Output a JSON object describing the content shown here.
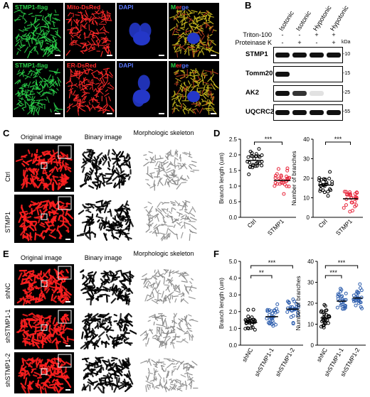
{
  "panels": {
    "A": "A",
    "B": "B",
    "C": "C",
    "D": "D",
    "E": "E",
    "F": "F"
  },
  "panelA": {
    "row1": [
      "STMP1-flag",
      "Mito-DsRed",
      "DAPI",
      "Merge"
    ],
    "row2": [
      "STMP1-flag",
      "ER-DsRed",
      "DAPI",
      "Merge"
    ]
  },
  "panelB": {
    "conditions": [
      "Isotonic",
      "Isotonic",
      "Hypotonic",
      "Hypotonic"
    ],
    "triton_label": "Triton-100",
    "triton_values": [
      "-",
      "-",
      "+",
      "+"
    ],
    "protk_label": "Proteinase K",
    "protk_values": [
      "-",
      "+",
      "-",
      "+"
    ],
    "kda_label": "kDa",
    "blots": [
      {
        "name": "STMP1",
        "kda": "10",
        "bands": [
          1,
          1,
          1,
          1
        ]
      },
      {
        "name": "Tomm20",
        "kda": "15",
        "bands": [
          1,
          0,
          0,
          0
        ]
      },
      {
        "name": "AK2",
        "kda": "25",
        "bands": [
          1,
          0.85,
          0.12,
          0
        ]
      },
      {
        "name": "UQCRC2",
        "kda": "55",
        "bands": [
          1,
          1,
          1,
          1
        ]
      }
    ]
  },
  "panelC": {
    "headers": [
      "Original image",
      "Binary image",
      "Morphologic skeleton"
    ],
    "rows": [
      "Ctrl",
      "STMP1"
    ]
  },
  "panelE": {
    "headers": [
      "Original image",
      "Binary image",
      "Morphologic skeleton"
    ],
    "rows": [
      "shNC",
      "shSTMP1-1",
      "shSTMP1-2"
    ]
  },
  "chart_data": [
    {
      "id": "D-left",
      "type": "scatter",
      "ylabel": "Branch length (um)",
      "categories": [
        "Ctrl",
        "STMP1"
      ],
      "ylim": [
        0,
        2.5
      ],
      "yticks": [
        "0.0",
        "0.5",
        "1.0",
        "1.5",
        "2.0",
        "2.5"
      ],
      "means": [
        1.82,
        1.18
      ],
      "sig": "***",
      "colors": [
        "#000000",
        "#e8263b"
      ]
    },
    {
      "id": "D-right",
      "type": "scatter",
      "ylabel": "Number of branches",
      "categories": [
        "Ctrl",
        "STMP1"
      ],
      "ylim": [
        0,
        40
      ],
      "yticks": [
        "0",
        "10",
        "20",
        "30",
        "40"
      ],
      "means": [
        16.5,
        9.5
      ],
      "sig": "***",
      "colors": [
        "#000000",
        "#e8263b"
      ]
    },
    {
      "id": "F-left",
      "type": "scatter",
      "ylabel": "Branch length (um)",
      "categories": [
        "shNC",
        "shSTMP1-1",
        "shSTMP1-2"
      ],
      "ylim": [
        0,
        5
      ],
      "yticks": [
        "0.0",
        "1.0",
        "2.0",
        "3.0",
        "4.0",
        "5.0"
      ],
      "means": [
        1.35,
        1.7,
        2.15
      ],
      "sig": [
        {
          "from": 0,
          "to": 1,
          "label": "**"
        },
        {
          "from": 0,
          "to": 2,
          "label": "***"
        }
      ],
      "colors": [
        "#000000",
        "#2f5fae",
        "#2f5fae"
      ]
    },
    {
      "id": "F-right",
      "type": "scatter",
      "ylabel": "Number of branches",
      "categories": [
        "shNC",
        "shSTMP1-1",
        "shSTMP1-2"
      ],
      "ylim": [
        0,
        40
      ],
      "yticks": [
        "0",
        "10",
        "20",
        "30",
        "40"
      ],
      "means": [
        13,
        21,
        22.5
      ],
      "sig": [
        {
          "from": 0,
          "to": 1,
          "label": "***"
        },
        {
          "from": 0,
          "to": 2,
          "label": "***"
        }
      ],
      "colors": [
        "#000000",
        "#2f5fae",
        "#2f5fae"
      ]
    }
  ]
}
